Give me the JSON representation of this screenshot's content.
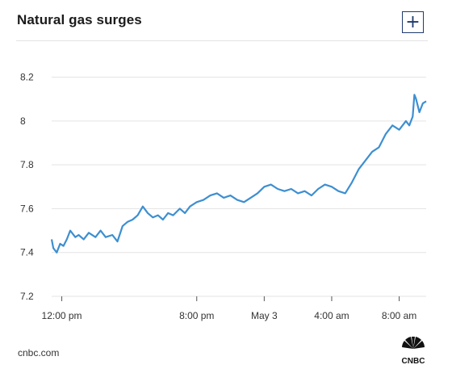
{
  "header": {
    "title": "Natural gas surges",
    "expand_label": "+"
  },
  "footer": {
    "source": "cnbc.com",
    "logo_text": "CNBC"
  },
  "colors": {
    "line": "#3d8fd1",
    "grid": "#e3e3e3",
    "text": "#333333",
    "accent": "#1f3a6b"
  },
  "chart_data": {
    "type": "line",
    "title": "Natural gas surges",
    "xlabel": "",
    "ylabel": "",
    "ylim": [
      7.2,
      8.25
    ],
    "yticks": [
      7.2,
      7.4,
      7.6,
      7.8,
      8,
      8.2
    ],
    "ytick_labels": [
      "7.2",
      "7.4",
      "7.6",
      "7.8",
      "8",
      "8.2"
    ],
    "xlim": [
      -0.6,
      21.6
    ],
    "xticks": [
      0,
      8,
      12,
      16,
      20
    ],
    "xtick_labels": [
      "12:00 pm",
      "8:00 pm",
      "May 3",
      "4:00 am",
      "8:00 am"
    ],
    "grid": true,
    "series": [
      {
        "x": [
          -0.6,
          -0.5,
          -0.3,
          -0.1,
          0.1,
          0.3,
          0.5,
          0.8,
          1.0,
          1.3,
          1.6,
          2.0,
          2.3,
          2.6,
          3.0,
          3.3,
          3.6,
          3.9,
          4.2,
          4.5,
          4.8,
          5.1,
          5.4,
          5.7,
          6.0,
          6.3,
          6.6,
          7.0,
          7.3,
          7.6,
          8.0,
          8.4,
          8.8,
          9.2,
          9.6,
          10.0,
          10.4,
          10.8,
          11.2,
          11.6,
          12.0,
          12.4,
          12.8,
          13.2,
          13.6,
          14.0,
          14.4,
          14.8,
          15.2,
          15.6,
          16.0,
          16.4,
          16.8,
          17.2,
          17.6,
          18.0,
          18.4,
          18.8,
          19.2,
          19.6,
          20.0,
          20.4,
          20.6,
          20.8,
          20.9,
          21.0,
          21.2,
          21.4,
          21.6
        ],
        "y": [
          7.46,
          7.42,
          7.4,
          7.44,
          7.43,
          7.46,
          7.5,
          7.47,
          7.48,
          7.46,
          7.49,
          7.47,
          7.5,
          7.47,
          7.48,
          7.45,
          7.52,
          7.54,
          7.55,
          7.57,
          7.61,
          7.58,
          7.56,
          7.57,
          7.55,
          7.58,
          7.57,
          7.6,
          7.58,
          7.61,
          7.63,
          7.64,
          7.66,
          7.67,
          7.65,
          7.66,
          7.64,
          7.63,
          7.65,
          7.67,
          7.7,
          7.71,
          7.69,
          7.68,
          7.69,
          7.67,
          7.68,
          7.66,
          7.69,
          7.71,
          7.7,
          7.68,
          7.67,
          7.72,
          7.78,
          7.82,
          7.86,
          7.88,
          7.94,
          7.98,
          7.96,
          8.0,
          7.98,
          8.02,
          8.12,
          8.1,
          8.04,
          8.08,
          8.09
        ]
      }
    ]
  }
}
